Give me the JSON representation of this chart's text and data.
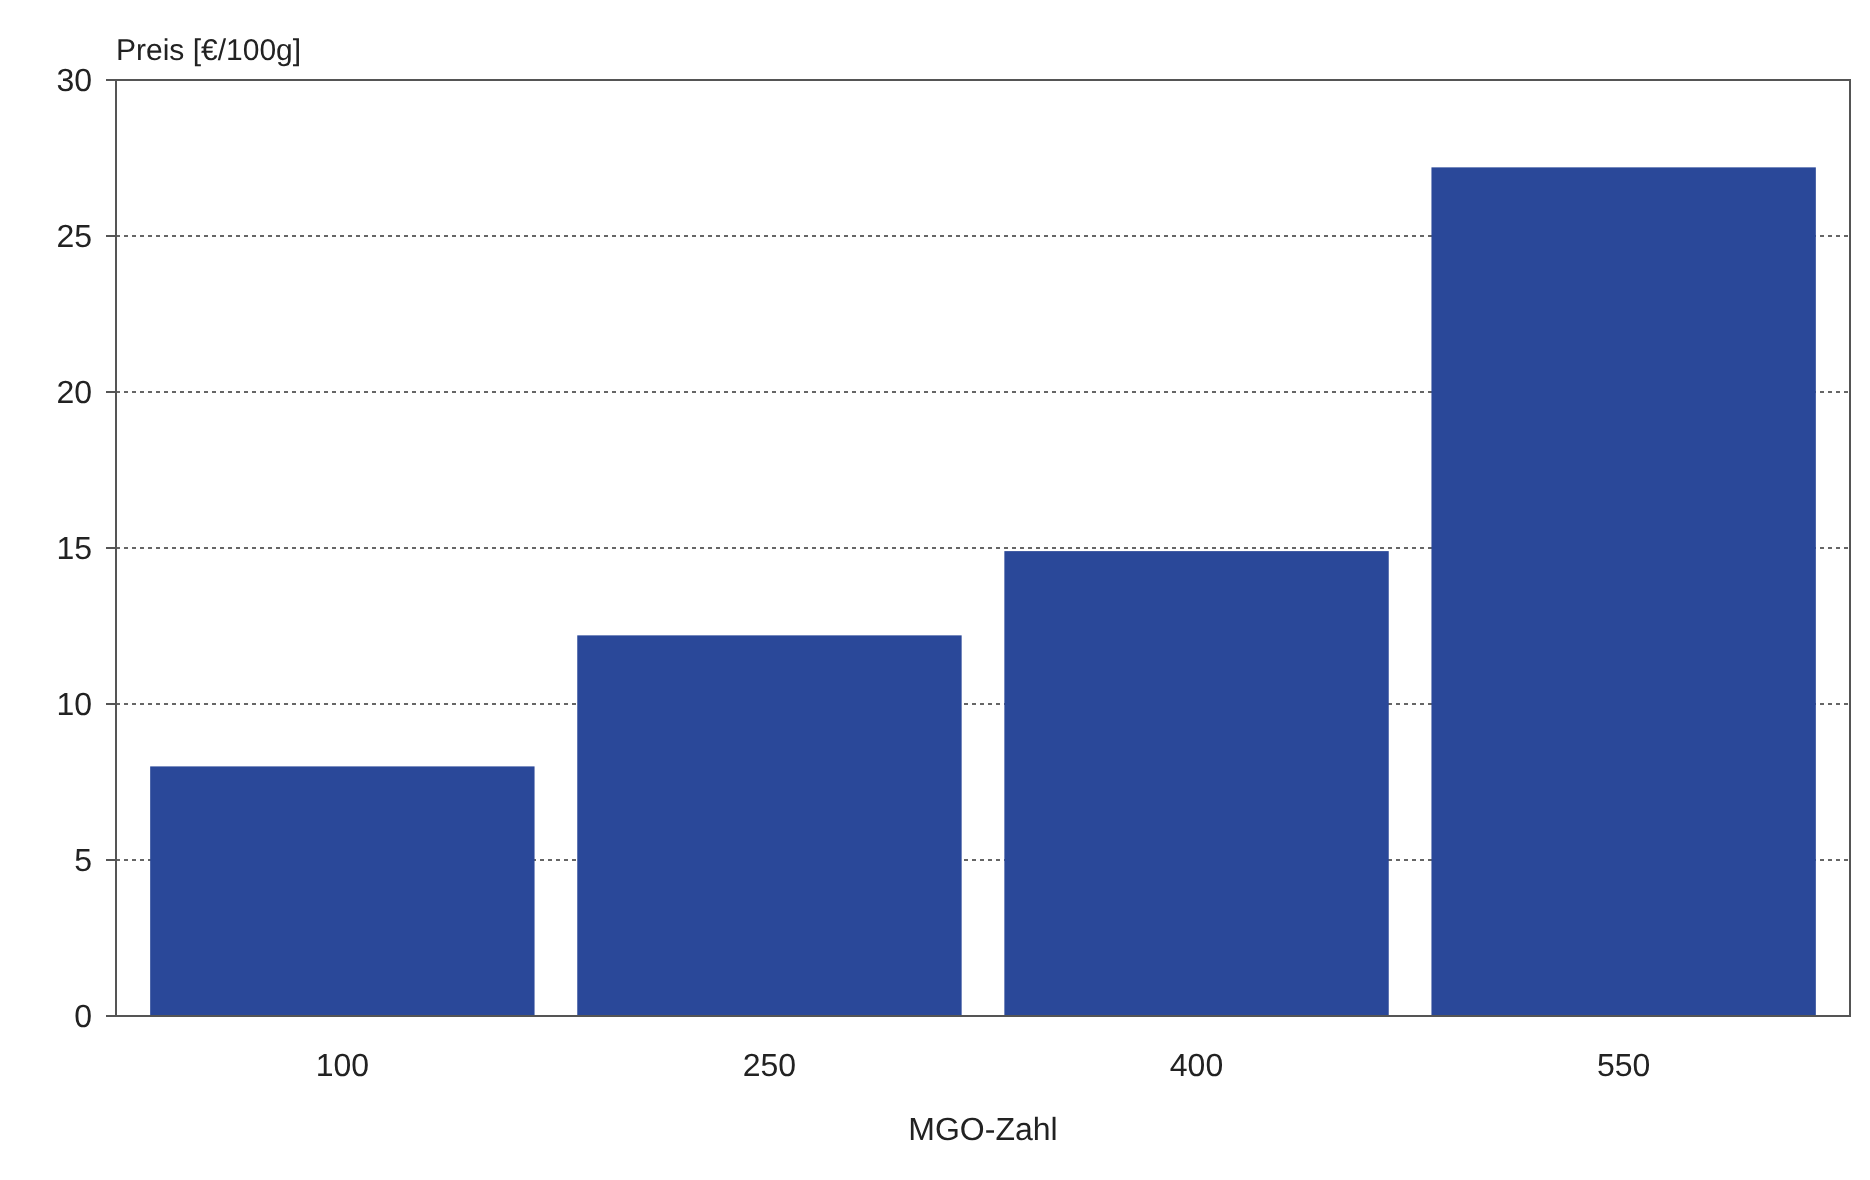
{
  "chart_data": {
    "type": "bar",
    "ylabel": "Preis [€/100g]",
    "xlabel": "MGO-Zahl",
    "categories": [
      "100",
      "250",
      "400",
      "550"
    ],
    "values": [
      8.0,
      12.2,
      14.9,
      27.2
    ],
    "color": "#2a4899",
    "ylim": [
      0,
      30
    ],
    "yticks": [
      0,
      5,
      10,
      15,
      20,
      25,
      30
    ],
    "grid": "y"
  }
}
